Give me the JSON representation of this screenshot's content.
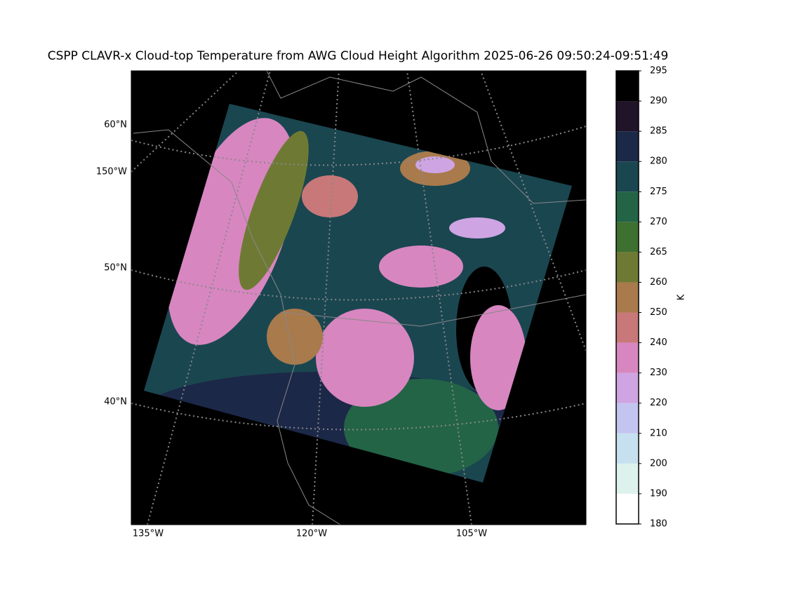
{
  "title": "CSPP CLAVR-x Cloud-top Temperature from AWG Cloud Height Algorithm 2025-06-26 09:50:24-09:51:49",
  "map": {
    "lat_labels": [
      "60°N",
      "50°N",
      "40°N"
    ],
    "lon_labels_left": [
      "150°W"
    ],
    "lon_labels_bottom": [
      "135°W",
      "120°W",
      "105°W"
    ]
  },
  "colorbar": {
    "label": "K",
    "ticks": [
      180,
      190,
      200,
      210,
      220,
      230,
      240,
      250,
      260,
      265,
      270,
      275,
      280,
      285,
      290,
      295
    ],
    "colors": [
      "#ffffff",
      "#ddf2ec",
      "#c6e0f0",
      "#c4c4f0",
      "#cea4e2",
      "#d786c0",
      "#c87878",
      "#a87a4c",
      "#6e7a34",
      "#3e7030",
      "#236446",
      "#1a4650",
      "#1c2848",
      "#201428",
      "#000000"
    ]
  }
}
